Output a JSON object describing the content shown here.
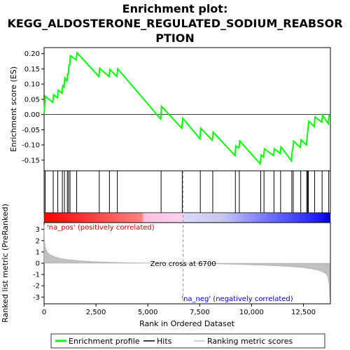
{
  "chart_data": {
    "type": "line",
    "title_lines": [
      "Enrichment plot:",
      "KEGG_ALDOSTERONE_REGULATED_SODIUM_REABSOR",
      "PTION"
    ],
    "top_panel": {
      "ylabel": "Enrichment score (ES)",
      "ylim": [
        -0.185,
        0.22
      ],
      "yticks": [
        -0.15,
        -0.1,
        -0.05,
        0.0,
        0.05,
        0.1,
        0.15,
        0.2
      ],
      "ytick_labels": [
        "-0.15",
        "-0.10",
        "-0.05",
        "0.00",
        "0.05",
        "0.10",
        "0.15",
        "0.20"
      ],
      "series": [
        {
          "name": "Enrichment profile",
          "color": "#00ff00",
          "x": [
            0,
            50,
            420,
            460,
            640,
            680,
            860,
            900,
            960,
            1000,
            1100,
            1140,
            1160,
            1200,
            1230,
            1270,
            1550,
            1590,
            2640,
            2680,
            3130,
            3170,
            3510,
            3550,
            5620,
            5660,
            6640,
            6680,
            7510,
            7550,
            8110,
            8150,
            9200,
            9240,
            9390,
            9430,
            10420,
            10460,
            10580,
            10620,
            11060,
            11100,
            11380,
            11420,
            11920,
            11960,
            11990,
            12030,
            12350,
            12390,
            12640,
            12680,
            12720,
            12760,
            13020,
            13060,
            13380,
            13420,
            13700,
            13740
          ],
          "y": [
            0.0,
            0.06,
            0.04,
            0.065,
            0.055,
            0.08,
            0.07,
            0.095,
            0.09,
            0.12,
            0.11,
            0.135,
            0.13,
            0.165,
            0.16,
            0.193,
            0.18,
            0.203,
            0.125,
            0.152,
            0.125,
            0.148,
            0.125,
            0.15,
            -0.015,
            0.027,
            -0.045,
            -0.012,
            -0.08,
            -0.045,
            -0.085,
            -0.058,
            -0.135,
            -0.103,
            -0.11,
            -0.087,
            -0.162,
            -0.133,
            -0.14,
            -0.113,
            -0.135,
            -0.113,
            -0.128,
            -0.107,
            -0.152,
            -0.12,
            -0.112,
            -0.088,
            -0.108,
            -0.083,
            -0.1,
            -0.075,
            -0.047,
            -0.022,
            -0.04,
            -0.008,
            -0.025,
            -0.002,
            -0.03,
            0.0
          ]
        }
      ]
    },
    "hits_panel": {
      "hit_positions": [
        50,
        440,
        660,
        880,
        980,
        1120,
        1180,
        1250,
        1570,
        2660,
        3150,
        3530,
        5640,
        6660,
        7530,
        8130,
        9220,
        9410,
        10440,
        10600,
        11080,
        11400,
        11940,
        12010,
        12370,
        12660,
        12700,
        12740,
        13040,
        13400,
        13720
      ]
    },
    "bottom_panel": {
      "ylabel": "Ranked list metric (PreRanked)",
      "ylim": [
        -3.6,
        3.6
      ],
      "yticks": [
        -3,
        -2,
        -1,
        0,
        1,
        2,
        3
      ],
      "ytick_labels": [
        "-3",
        "-2",
        "-1",
        "0",
        "1",
        "2",
        "3"
      ],
      "xlabel": "Rank in Ordered Dataset",
      "xlim": [
        0,
        13800
      ],
      "xticks": [
        0,
        2500,
        5000,
        7500,
        10000,
        12500
      ],
      "xtick_labels": [
        "0",
        "2,500",
        "5,000",
        "7,500",
        "10,000",
        "12,500"
      ],
      "metric_x": [
        0,
        20,
        60,
        120,
        200,
        300,
        450,
        600,
        800,
        1000,
        1300,
        1700,
        2200,
        2800,
        3500,
        4300,
        5200,
        6000,
        6700,
        7500,
        8500,
        9500,
        10500,
        11300,
        12000,
        12500,
        12900,
        13200,
        13400,
        13550,
        13650,
        13700,
        13740,
        13760,
        13780
      ],
      "metric_y": [
        3.4,
        1.9,
        1.4,
        1.1,
        0.9,
        0.75,
        0.62,
        0.52,
        0.43,
        0.36,
        0.29,
        0.22,
        0.16,
        0.11,
        0.07,
        0.04,
        0.02,
        0.01,
        0.0,
        -0.03,
        -0.07,
        -0.12,
        -0.18,
        -0.24,
        -0.32,
        -0.4,
        -0.5,
        -0.62,
        -0.75,
        -0.9,
        -1.1,
        -1.4,
        -1.9,
        -2.6,
        -3.4
      ],
      "zero_cross_label": "Zero cross at 6700",
      "zero_cross_x": 6700,
      "pos_label": "'na_pos' (positively correlated)",
      "neg_label": "'na_neg' (negatively correlated)"
    },
    "legend": {
      "placement": "bottom",
      "items": [
        {
          "label": "Enrichment profile",
          "color": "#00ff00"
        },
        {
          "label": "Hits",
          "color": "#000000"
        },
        {
          "label": "Ranking metric scores",
          "color": "#c0c0c0"
        }
      ]
    }
  }
}
